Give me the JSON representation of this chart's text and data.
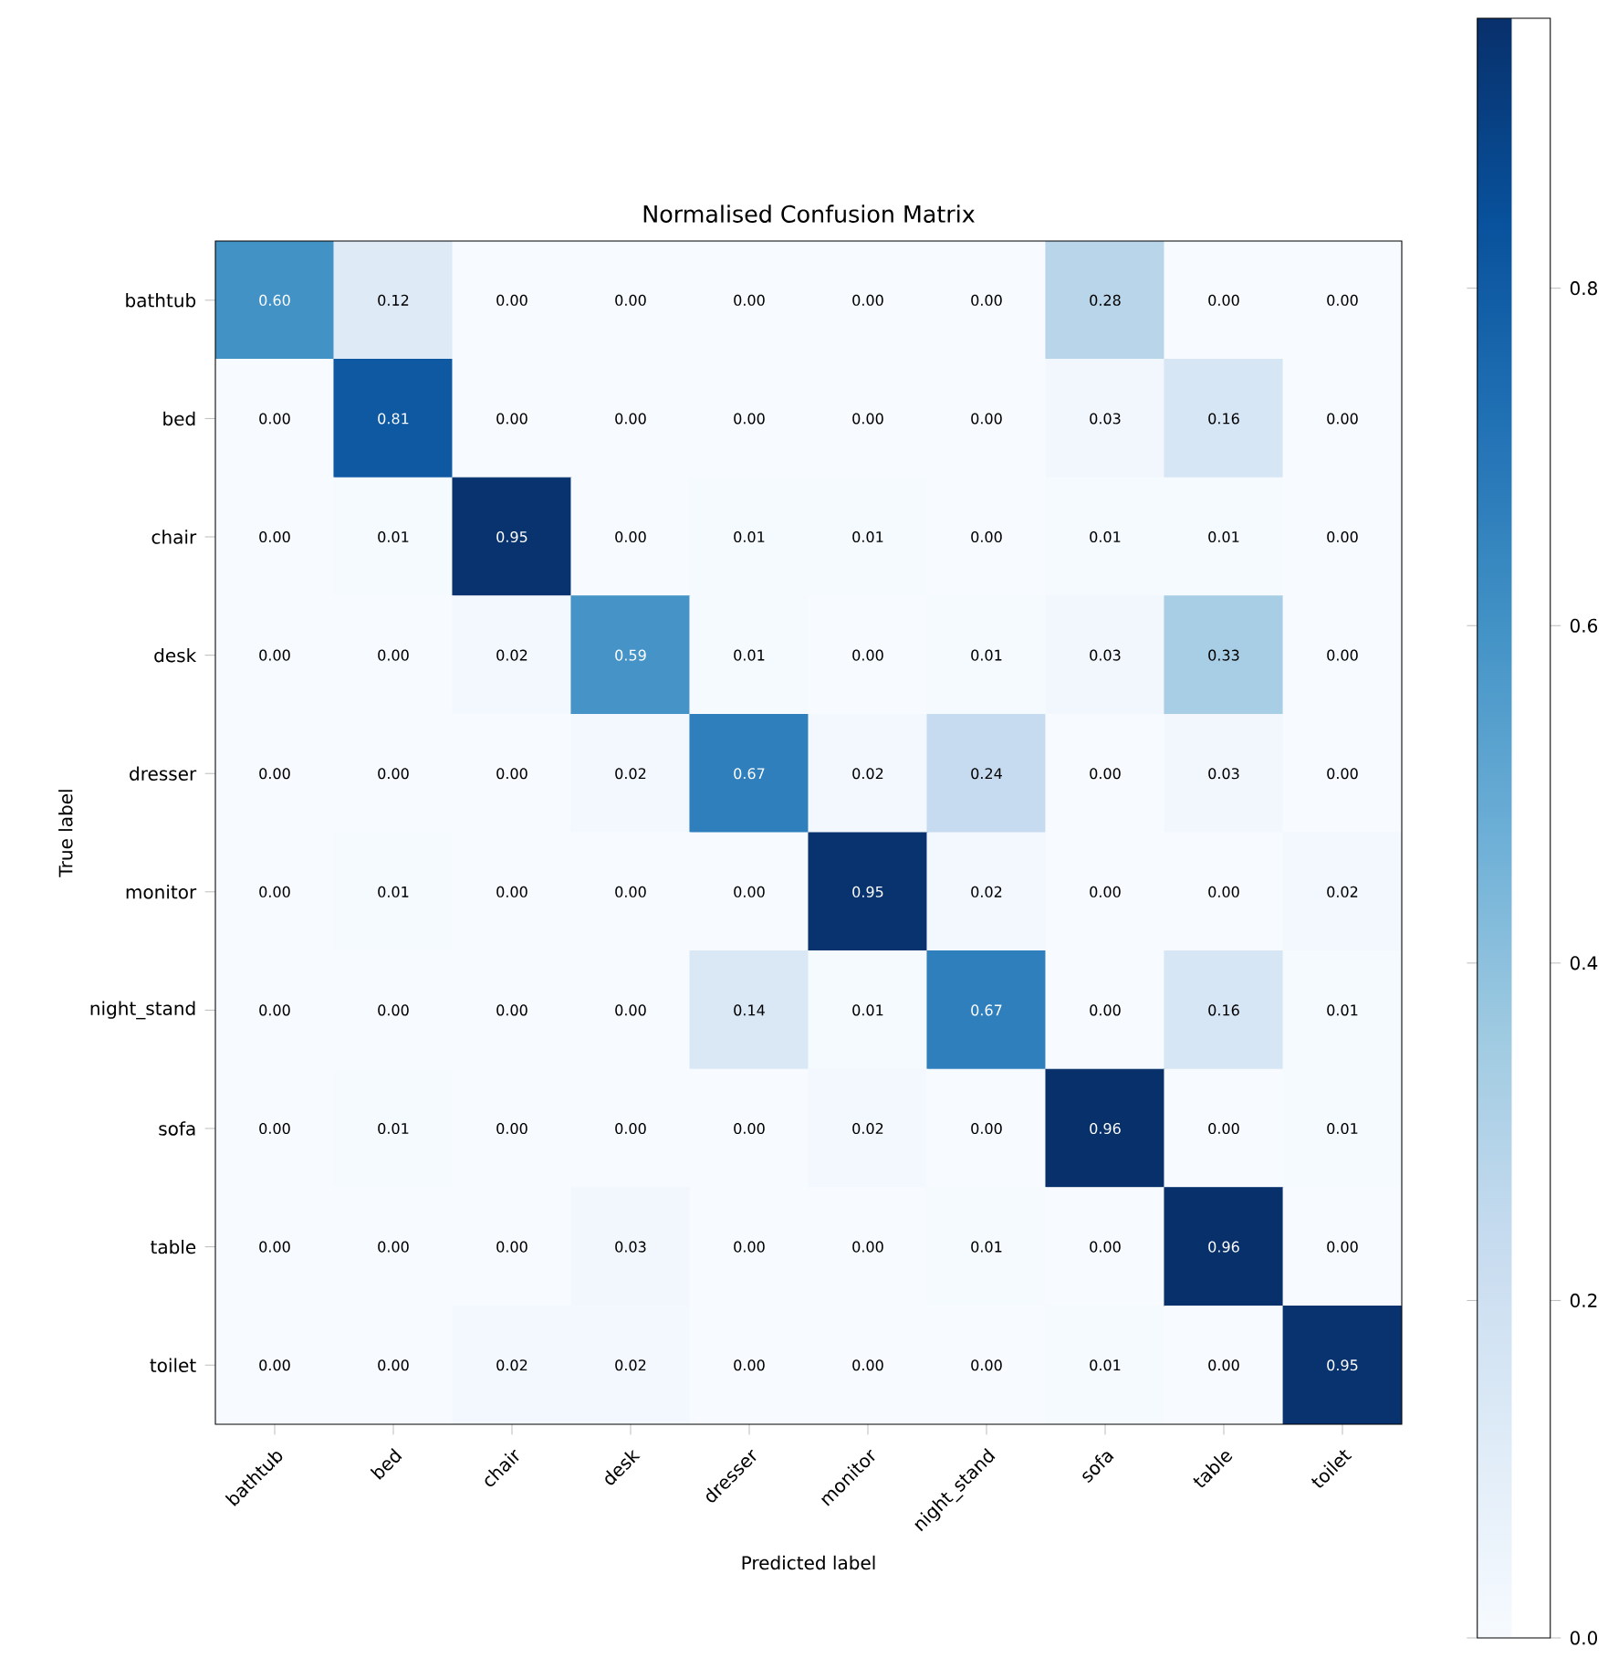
{
  "chart_data": {
    "type": "heatmap",
    "title": "Normalised Confusion Matrix",
    "xlabel": "Predicted label",
    "ylabel": "True label",
    "categories": [
      "bathtub",
      "bed",
      "chair",
      "desk",
      "dresser",
      "monitor",
      "night_stand",
      "sofa",
      "table",
      "toilet"
    ],
    "y_categories": [
      "bathtub",
      "bed",
      "chair",
      "desk",
      "dresser",
      "monitor",
      "night_stand",
      "sofa",
      "table",
      "toilet"
    ],
    "cells": [
      [
        0.6,
        0.12,
        0.0,
        0.0,
        0.0,
        0.0,
        0.0,
        0.28,
        0.0,
        0.0
      ],
      [
        0.0,
        0.81,
        0.0,
        0.0,
        0.0,
        0.0,
        0.0,
        0.03,
        0.16,
        0.0
      ],
      [
        0.0,
        0.01,
        0.95,
        0.0,
        0.01,
        0.01,
        0.0,
        0.01,
        0.01,
        0.0
      ],
      [
        0.0,
        0.0,
        0.02,
        0.59,
        0.01,
        0.0,
        0.01,
        0.03,
        0.33,
        0.0
      ],
      [
        0.0,
        0.0,
        0.0,
        0.02,
        0.67,
        0.02,
        0.24,
        0.0,
        0.03,
        0.0
      ],
      [
        0.0,
        0.01,
        0.0,
        0.0,
        0.0,
        0.95,
        0.02,
        0.0,
        0.0,
        0.02
      ],
      [
        0.0,
        0.0,
        0.0,
        0.0,
        0.14,
        0.01,
        0.67,
        0.0,
        0.16,
        0.01
      ],
      [
        0.0,
        0.01,
        0.0,
        0.0,
        0.0,
        0.02,
        0.0,
        0.96,
        0.0,
        0.01
      ],
      [
        0.0,
        0.0,
        0.0,
        0.03,
        0.0,
        0.0,
        0.01,
        0.0,
        0.96,
        0.0
      ],
      [
        0.0,
        0.0,
        0.02,
        0.02,
        0.0,
        0.0,
        0.0,
        0.01,
        0.0,
        0.95
      ]
    ],
    "cell_labels": [
      [
        "0.60",
        "0.12",
        "0.00",
        "0.00",
        "0.00",
        "0.00",
        "0.00",
        "0.28",
        "0.00",
        "0.00"
      ],
      [
        "0.00",
        "0.81",
        "0.00",
        "0.00",
        "0.00",
        "0.00",
        "0.00",
        "0.03",
        "0.16",
        "0.00"
      ],
      [
        "0.00",
        "0.01",
        "0.95",
        "0.00",
        "0.01",
        "0.01",
        "0.00",
        "0.01",
        "0.01",
        "0.00"
      ],
      [
        "0.00",
        "0.00",
        "0.02",
        "0.59",
        "0.01",
        "0.00",
        "0.01",
        "0.03",
        "0.33",
        "0.00"
      ],
      [
        "0.00",
        "0.00",
        "0.00",
        "0.02",
        "0.67",
        "0.02",
        "0.24",
        "0.00",
        "0.03",
        "0.00"
      ],
      [
        "0.00",
        "0.01",
        "0.00",
        "0.00",
        "0.00",
        "0.95",
        "0.02",
        "0.00",
        "0.00",
        "0.02"
      ],
      [
        "0.00",
        "0.00",
        "0.00",
        "0.00",
        "0.14",
        "0.01",
        "0.67",
        "0.00",
        "0.16",
        "0.01"
      ],
      [
        "0.00",
        "0.01",
        "0.00",
        "0.00",
        "0.00",
        "0.02",
        "0.00",
        "0.96",
        "0.00",
        "0.01"
      ],
      [
        "0.00",
        "0.00",
        "0.00",
        "0.03",
        "0.00",
        "0.00",
        "0.01",
        "0.00",
        "0.96",
        "0.00"
      ],
      [
        "0.00",
        "0.00",
        "0.02",
        "0.02",
        "0.00",
        "0.00",
        "0.00",
        "0.01",
        "0.00",
        "0.95"
      ]
    ],
    "clim": [
      0,
      0.96
    ],
    "cticks": [
      {
        "value": 0,
        "label": "0.0"
      },
      0.2,
      0.4,
      0.6,
      0.8
    ]
  }
}
